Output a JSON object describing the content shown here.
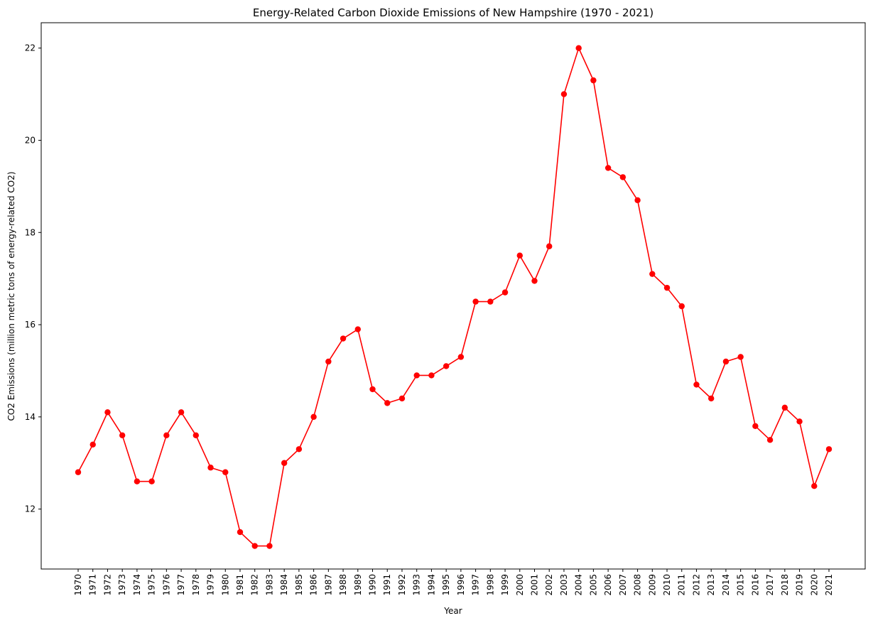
{
  "chart_data": {
    "type": "line",
    "title": "Energy-Related Carbon Dioxide Emissions of New Hampshire (1970 - 2021)",
    "xlabel": "Year",
    "ylabel": "CO2 Emissions (million metric tons of energy-related CO2)",
    "categories": [
      "1970",
      "1971",
      "1972",
      "1973",
      "1974",
      "1975",
      "1976",
      "1977",
      "1978",
      "1979",
      "1980",
      "1981",
      "1982",
      "1983",
      "1984",
      "1985",
      "1986",
      "1987",
      "1988",
      "1989",
      "1990",
      "1991",
      "1992",
      "1993",
      "1994",
      "1995",
      "1996",
      "1997",
      "1998",
      "1999",
      "2000",
      "2001",
      "2002",
      "2003",
      "2004",
      "2005",
      "2006",
      "2007",
      "2008",
      "2009",
      "2010",
      "2011",
      "2012",
      "2013",
      "2014",
      "2015",
      "2016",
      "2017",
      "2018",
      "2019",
      "2020",
      "2021"
    ],
    "series": [
      {
        "values": [
          12.8,
          13.4,
          14.1,
          13.6,
          12.6,
          12.6,
          13.6,
          14.1,
          13.6,
          12.9,
          12.8,
          11.5,
          11.2,
          11.2,
          13.0,
          13.3,
          14.0,
          15.2,
          15.7,
          15.9,
          14.6,
          14.3,
          14.4,
          14.9,
          14.9,
          15.1,
          15.3,
          16.5,
          16.5,
          16.7,
          17.5,
          16.95,
          17.7,
          21.0,
          22.0,
          21.3,
          19.4,
          19.2,
          18.7,
          17.1,
          16.8,
          16.4,
          14.7,
          14.4,
          15.2,
          15.3,
          13.8,
          13.5,
          14.2,
          13.9,
          12.5,
          13.3
        ],
        "color": "#ff0000",
        "marker": "circle"
      }
    ],
    "yticks": [
      "12",
      "14",
      "16",
      "18",
      "20",
      "22"
    ],
    "ylim": [
      10.7,
      22.55
    ],
    "grid": false,
    "legend": "none"
  }
}
